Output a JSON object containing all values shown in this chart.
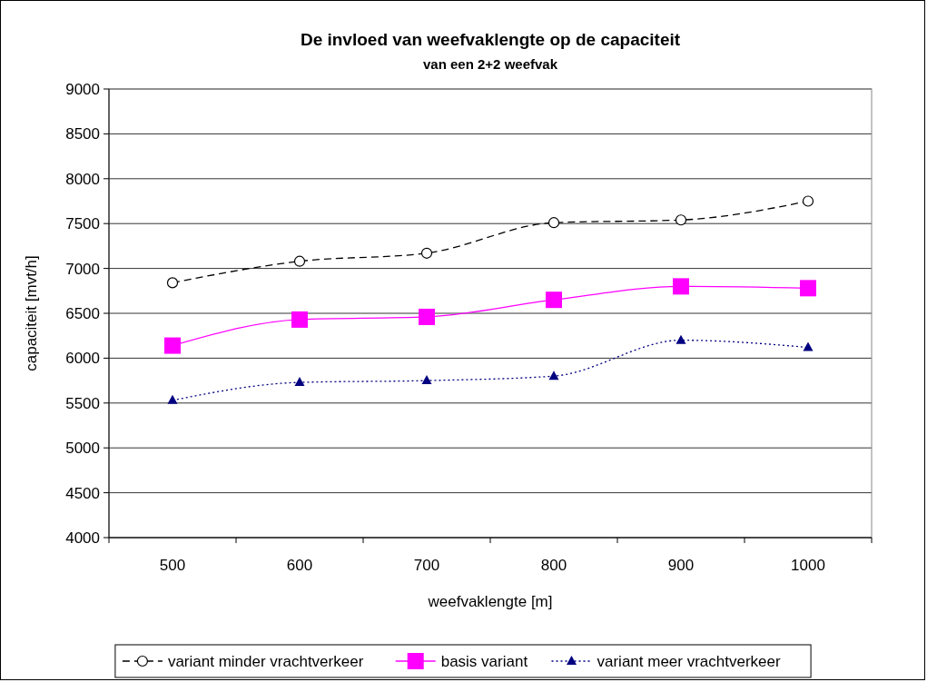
{
  "chart_data": {
    "type": "line",
    "title": "De invloed van weefvaklengte op de capaciteit",
    "subtitle": "van een 2+2 weefvak",
    "xlabel": "weefvaklengte [m]",
    "ylabel": "capaciteit [mvt/h]",
    "categories": [
      "500",
      "600",
      "700",
      "800",
      "900",
      "1000"
    ],
    "ylim": [
      4000,
      9000
    ],
    "yticks": [
      4000,
      4500,
      5000,
      5500,
      6000,
      6500,
      7000,
      7500,
      8000,
      8500,
      9000
    ],
    "grid": "y",
    "legend": "bottom",
    "series": [
      {
        "name": "variant minder vrachtverkeer",
        "color": "#000000",
        "marker": "circle",
        "line_style": "dashed",
        "values": [
          6840,
          7080,
          7170,
          7510,
          7540,
          7750
        ]
      },
      {
        "name": "basis variant",
        "color": "#ff00ff",
        "marker": "square",
        "line_style": "solid",
        "values": [
          6140,
          6430,
          6460,
          6650,
          6800,
          6780
        ]
      },
      {
        "name": "variant meer vrachtverkeer",
        "color": "#000080",
        "marker": "triangle",
        "line_style": "dotted",
        "values": [
          5530,
          5730,
          5750,
          5800,
          6200,
          6120
        ]
      }
    ]
  }
}
